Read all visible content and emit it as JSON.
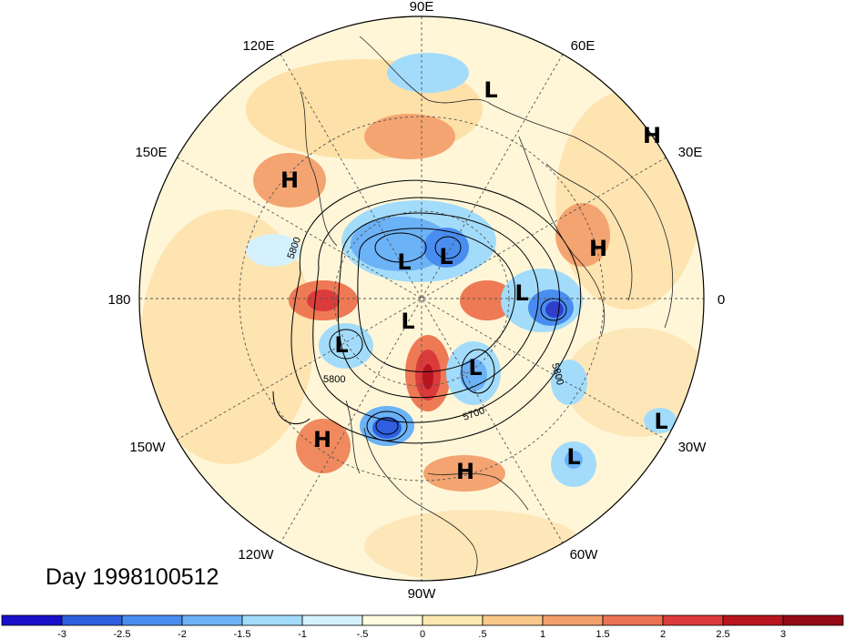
{
  "title": "Day 1998100512",
  "longitude_labels": {
    "e90": "90E",
    "e120": "120E",
    "e60": "60E",
    "e150": "150E",
    "e30": "30E",
    "d180": "180",
    "d0": "0",
    "w150": "150W",
    "w30": "30W",
    "w120": "120W",
    "w60": "60W",
    "w90": "90W"
  },
  "pressure_centers": [
    {
      "label": "L",
      "name": "low-1"
    },
    {
      "label": "H",
      "name": "high-1"
    },
    {
      "label": "H",
      "name": "high-2"
    },
    {
      "label": "H",
      "name": "high-3"
    },
    {
      "label": "L",
      "name": "low-2"
    },
    {
      "label": "L",
      "name": "low-3"
    },
    {
      "label": "L",
      "name": "low-4"
    },
    {
      "label": "L",
      "name": "low-5"
    },
    {
      "label": "L",
      "name": "low-6"
    },
    {
      "label": "L",
      "name": "low-7"
    },
    {
      "label": "H",
      "name": "high-4"
    },
    {
      "label": "H",
      "name": "high-5"
    },
    {
      "label": "L",
      "name": "low-8"
    },
    {
      "label": "L",
      "name": "low-9"
    }
  ],
  "contour_labels": {
    "c1": "5800",
    "c2": "5700",
    "c3": "5800",
    "c4": "5800"
  },
  "colorbar": {
    "colors": [
      "#1a0fc9",
      "#2f5fe0",
      "#4a8df0",
      "#6cb2f7",
      "#a3dcfa",
      "#d5f1fd",
      "#fffbe0",
      "#fde9b0",
      "#f9c98a",
      "#f2a06b",
      "#ec7155",
      "#dc3b3b",
      "#b8141f",
      "#930a14"
    ],
    "ticks": [
      "-3",
      "-2.5",
      "-2",
      "-1.5",
      "-1",
      "-.5",
      "0",
      ".5",
      "1",
      "1.5",
      "2",
      "2.5",
      "3"
    ]
  },
  "colors": {
    "background": "#ffffff",
    "ocean_neutral": "#fff6d8"
  }
}
